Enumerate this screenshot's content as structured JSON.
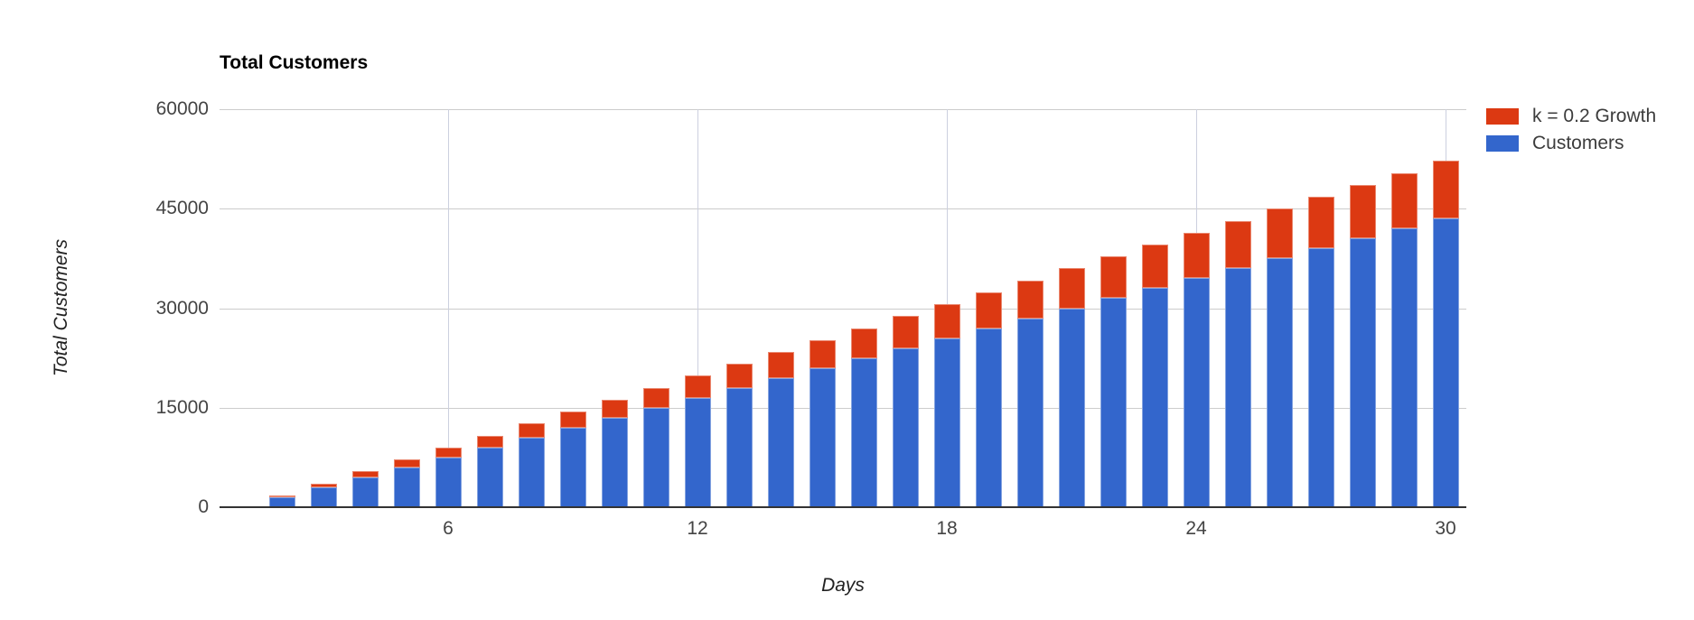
{
  "chart": {
    "title": "Total Customers",
    "y_axis_title": "Total Customers",
    "x_axis_title": "Days"
  },
  "chart_data": {
    "type": "bar",
    "stacked": true,
    "title": "Total Customers",
    "xlabel": "Days",
    "ylabel": "Total Customers",
    "x": [
      2,
      3,
      4,
      5,
      6,
      7,
      8,
      9,
      10,
      11,
      12,
      13,
      14,
      15,
      16,
      17,
      18,
      19,
      20,
      21,
      22,
      23,
      24,
      25,
      26,
      27,
      28,
      29,
      30
    ],
    "series": [
      {
        "name": "Customers",
        "color": "#3366cc",
        "values": [
          1500,
          3000,
          4500,
          6000,
          7500,
          9000,
          10500,
          12000,
          13500,
          15000,
          16500,
          18000,
          19500,
          21000,
          22500,
          24000,
          25500,
          27000,
          28500,
          30000,
          31500,
          33000,
          34500,
          36000,
          37500,
          39000,
          40500,
          42000,
          43500
        ]
      },
      {
        "name": "k = 0.2 Growth",
        "color": "#dc3912",
        "values": [
          300,
          600,
          900,
          1200,
          1500,
          1800,
          2100,
          2400,
          2700,
          3000,
          3300,
          3600,
          3900,
          4200,
          4500,
          4800,
          5100,
          5400,
          5700,
          6000,
          6300,
          6600,
          6900,
          7200,
          7500,
          7800,
          8100,
          8400,
          8700
        ]
      }
    ],
    "legend_items": [
      {
        "label": "k = 0.2 Growth",
        "color": "#dc3912"
      },
      {
        "label": "Customers",
        "color": "#3366cc"
      }
    ],
    "legend_position": "right",
    "x_domain": [
      1,
      30
    ],
    "ylim": [
      0,
      60000
    ],
    "y_ticks": [
      0,
      15000,
      30000,
      45000,
      60000
    ],
    "x_ticks": [
      6,
      12,
      18,
      24,
      30
    ],
    "grid": true,
    "colors": {
      "h_gridline": "#cccccc",
      "v_gridline": "#ccd0df",
      "baseline": "#333333",
      "tick_text": "#444444",
      "axis_title_text": "#222222",
      "title_text": "#000000"
    }
  }
}
